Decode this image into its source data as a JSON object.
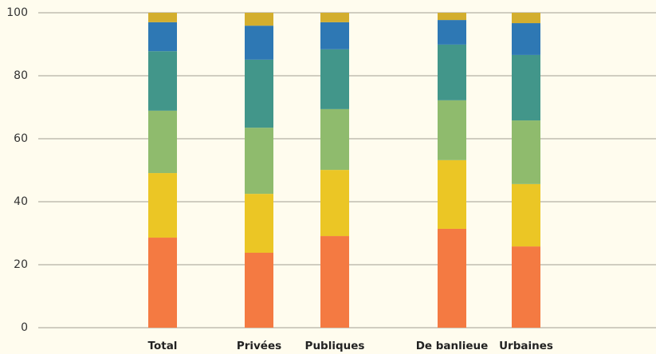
{
  "chart_data": {
    "type": "stacked_bar",
    "categories": [
      "Total",
      "Privées",
      "Publiques",
      "De banlieue",
      "Urbaines"
    ],
    "series": [
      {
        "color": "#f47a42",
        "values": [
          28.6,
          23.8,
          29.1,
          31.4,
          25.8
        ]
      },
      {
        "color": "#ebc625",
        "values": [
          20.5,
          18.7,
          21.0,
          21.8,
          19.8
        ]
      },
      {
        "color": "#8fbb6d",
        "values": [
          19.8,
          21.0,
          19.3,
          19.0,
          20.2
        ]
      },
      {
        "color": "#42968a",
        "values": [
          18.9,
          21.6,
          19.0,
          17.7,
          20.8
        ]
      },
      {
        "color": "#2e78b4",
        "values": [
          9.2,
          10.8,
          8.6,
          7.8,
          10.1
        ]
      },
      {
        "color": "#d3ae2e",
        "values": [
          3.0,
          4.1,
          3.0,
          2.3,
          3.3
        ]
      }
    ],
    "ylim": [
      0,
      100
    ],
    "yticks": [
      0,
      20,
      40,
      60,
      80,
      100
    ],
    "grid": true
  }
}
